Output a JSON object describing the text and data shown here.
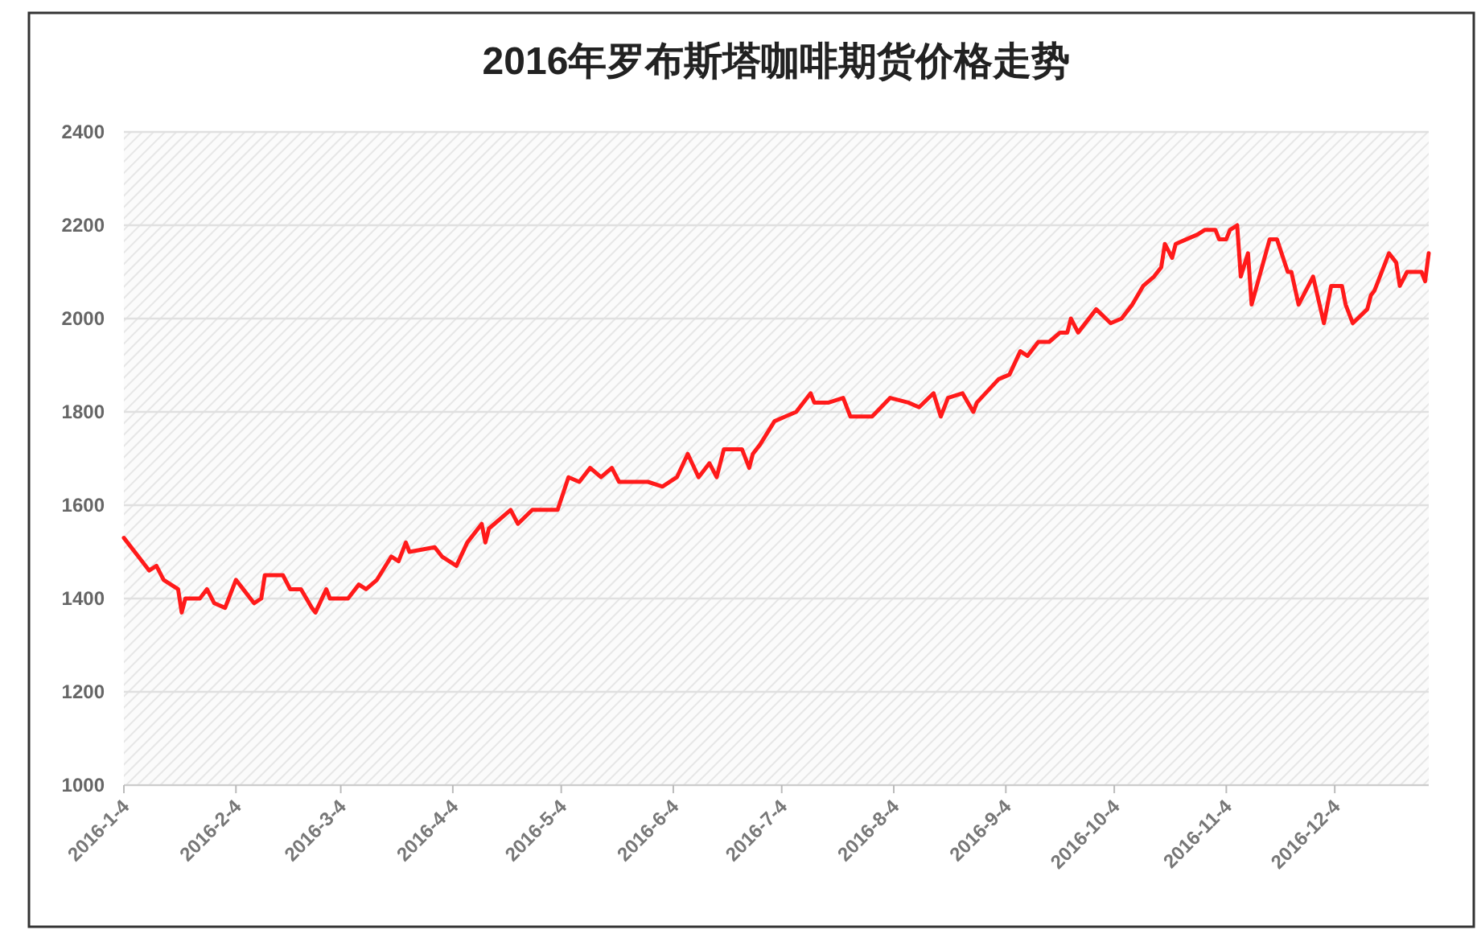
{
  "chart_data": {
    "type": "line",
    "title": "2016年罗布斯塔咖啡期货价格走势",
    "x": [
      "2016-01-04",
      "2016-01-08",
      "2016-01-11",
      "2016-01-13",
      "2016-01-15",
      "2016-01-19",
      "2016-01-20",
      "2016-01-21",
      "2016-01-25",
      "2016-01-27",
      "2016-01-29",
      "2016-02-01",
      "2016-02-04",
      "2016-02-06",
      "2016-02-09",
      "2016-02-11",
      "2016-02-12",
      "2016-02-17",
      "2016-02-19",
      "2016-02-22",
      "2016-02-25",
      "2016-02-26",
      "2016-02-29",
      "2016-03-01",
      "2016-03-06",
      "2016-03-09",
      "2016-03-11",
      "2016-03-14",
      "2016-03-18",
      "2016-03-20",
      "2016-03-22",
      "2016-03-23",
      "2016-03-30",
      "2016-04-01",
      "2016-04-05",
      "2016-04-08",
      "2016-04-12",
      "2016-04-13",
      "2016-04-14",
      "2016-04-20",
      "2016-04-22",
      "2016-04-26",
      "2016-04-29",
      "2016-05-03",
      "2016-05-06",
      "2016-05-09",
      "2016-05-12",
      "2016-05-15",
      "2016-05-18",
      "2016-05-20",
      "2016-05-28",
      "2016-06-01",
      "2016-06-05",
      "2016-06-08",
      "2016-06-11",
      "2016-06-14",
      "2016-06-16",
      "2016-06-18",
      "2016-06-23",
      "2016-06-25",
      "2016-06-26",
      "2016-06-28",
      "2016-07-02",
      "2016-07-05",
      "2016-07-08",
      "2016-07-12",
      "2016-07-13",
      "2016-07-17",
      "2016-07-21",
      "2016-07-23",
      "2016-07-29",
      "2016-08-03",
      "2016-08-08",
      "2016-08-11",
      "2016-08-15",
      "2016-08-17",
      "2016-08-19",
      "2016-08-23",
      "2016-08-26",
      "2016-08-27",
      "2016-09-02",
      "2016-09-05",
      "2016-09-08",
      "2016-09-10",
      "2016-09-13",
      "2016-09-16",
      "2016-09-19",
      "2016-09-21",
      "2016-09-22",
      "2016-09-24",
      "2016-09-29",
      "2016-10-03",
      "2016-10-06",
      "2016-10-09",
      "2016-10-12",
      "2016-10-15",
      "2016-10-17",
      "2016-10-18",
      "2016-10-20",
      "2016-10-21",
      "2016-10-24",
      "2016-10-27",
      "2016-10-29",
      "2016-11-01",
      "2016-11-02",
      "2016-11-04",
      "2016-11-05",
      "2016-11-07",
      "2016-11-08",
      "2016-11-10",
      "2016-11-11",
      "2016-11-16",
      "2016-11-18",
      "2016-11-21",
      "2016-11-22",
      "2016-11-24",
      "2016-11-28",
      "2016-12-01",
      "2016-12-03",
      "2016-12-06",
      "2016-12-07",
      "2016-12-09",
      "2016-12-13",
      "2016-12-14",
      "2016-12-15",
      "2016-12-19",
      "2016-12-21",
      "2016-12-22",
      "2016-12-24",
      "2016-12-28",
      "2016-12-29",
      "2016-12-30"
    ],
    "series": [
      {
        "color": "#ff1a1a",
        "values": [
          1530,
          1490,
          1460,
          1470,
          1440,
          1420,
          1370,
          1400,
          1400,
          1420,
          1390,
          1380,
          1440,
          1420,
          1390,
          1400,
          1450,
          1450,
          1420,
          1420,
          1380,
          1370,
          1420,
          1400,
          1400,
          1430,
          1420,
          1440,
          1490,
          1480,
          1520,
          1500,
          1510,
          1490,
          1470,
          1520,
          1560,
          1520,
          1550,
          1590,
          1560,
          1590,
          1590,
          1590,
          1660,
          1650,
          1680,
          1660,
          1680,
          1650,
          1650,
          1640,
          1660,
          1710,
          1660,
          1690,
          1660,
          1720,
          1720,
          1680,
          1710,
          1730,
          1780,
          1790,
          1800,
          1840,
          1820,
          1820,
          1830,
          1790,
          1790,
          1830,
          1820,
          1810,
          1840,
          1790,
          1830,
          1840,
          1800,
          1820,
          1870,
          1880,
          1930,
          1920,
          1950,
          1950,
          1970,
          1970,
          2000,
          1970,
          2020,
          1990,
          2000,
          2030,
          2070,
          2090,
          2110,
          2160,
          2130,
          2160,
          2170,
          2180,
          2190,
          2190,
          2170,
          2170,
          2190,
          2200,
          2090,
          2140,
          2030,
          2170,
          2170,
          2100,
          2100,
          2030,
          2090,
          1990,
          2070,
          2070,
          2030,
          1990,
          2020,
          2050,
          2060,
          2140,
          2120,
          2070,
          2100,
          2100,
          2080,
          2140
        ]
      }
    ],
    "xlim": [
      "2016-01-04",
      "2016-12-30"
    ],
    "xticks": [
      {
        "value": "2016-01-04",
        "label": "2016-1-4"
      },
      {
        "value": "2016-02-04",
        "label": "2016-2-4"
      },
      {
        "value": "2016-03-04",
        "label": "2016-3-4"
      },
      {
        "value": "2016-04-04",
        "label": "2016-4-4"
      },
      {
        "value": "2016-05-04",
        "label": "2016-5-4"
      },
      {
        "value": "2016-06-04",
        "label": "2016-6-4"
      },
      {
        "value": "2016-07-04",
        "label": "2016-7-4"
      },
      {
        "value": "2016-08-04",
        "label": "2016-8-4"
      },
      {
        "value": "2016-09-04",
        "label": "2016-9-4"
      },
      {
        "value": "2016-10-04",
        "label": "2016-10-4"
      },
      {
        "value": "2016-11-04",
        "label": "2016-11-4"
      },
      {
        "value": "2016-12-04",
        "label": "2016-12-4"
      }
    ],
    "ylim": [
      1000,
      2400
    ],
    "yticks": [
      1000,
      1200,
      1400,
      1600,
      1800,
      2000,
      2200,
      2400
    ],
    "grid": "y",
    "marker": "none",
    "line_style": "solid"
  }
}
